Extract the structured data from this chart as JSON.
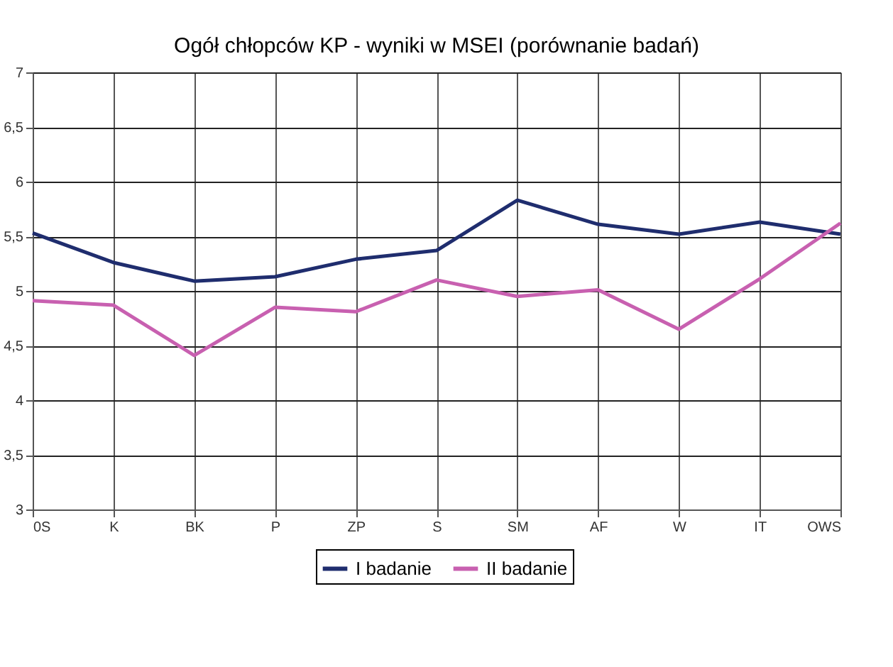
{
  "chart_data": {
    "type": "line",
    "title": "Ogół chłopców KP - wyniki w MSEI (porównanie badań)",
    "categories": [
      "0S",
      "K",
      "BK",
      "P",
      "ZP",
      "S",
      "SM",
      "AF",
      "W",
      "IT",
      "OWS"
    ],
    "series": [
      {
        "name": "I badanie",
        "color": "#1f2d6e",
        "values": [
          5.53,
          5.26,
          5.09,
          5.13,
          5.29,
          5.37,
          5.83,
          5.61,
          5.52,
          5.63,
          5.52
        ]
      },
      {
        "name": "II badanie",
        "color": "#c860b0",
        "values": [
          4.91,
          4.87,
          4.41,
          4.85,
          4.81,
          5.1,
          4.95,
          5.01,
          4.65,
          5.11,
          5.62
        ]
      }
    ],
    "ylim": [
      3,
      7
    ],
    "yticks": [
      3,
      {
        "value": 3.5,
        "label": "3,5"
      },
      4,
      {
        "value": 4.5,
        "label": "4,5"
      },
      5,
      {
        "value": 5.5,
        "label": "5,5"
      },
      6,
      {
        "value": 6.5,
        "label": "6,5"
      },
      7
    ],
    "grid": true,
    "legend": "bottom",
    "marker": "none",
    "line_style": "solid"
  }
}
